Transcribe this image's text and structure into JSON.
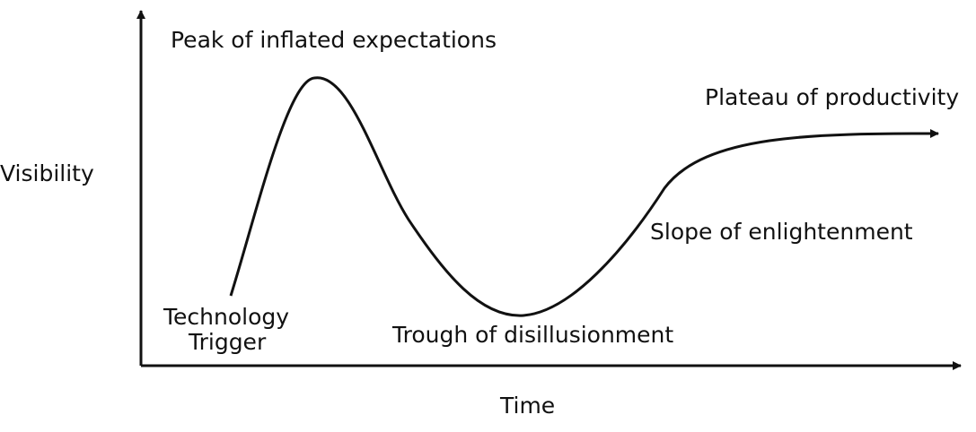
{
  "diagram": {
    "type": "hype-cycle",
    "axes": {
      "x_label": "Time",
      "y_label": "Visibility"
    },
    "phases": {
      "trigger_line1": "Technology",
      "trigger_line2": "Trigger",
      "peak": "Peak of inflated expectations",
      "trough": "Trough of disillusionment",
      "slope": "Slope of enlightenment",
      "plateau": "Plateau of productivity"
    },
    "colors": {
      "line": "#111111",
      "background": "#ffffff"
    }
  }
}
